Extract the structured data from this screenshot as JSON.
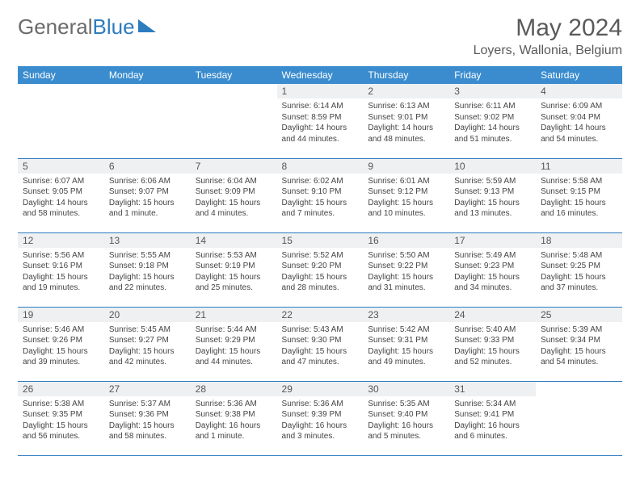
{
  "brand": {
    "name1": "General",
    "name2": "Blue"
  },
  "title": {
    "month": "May 2024",
    "location": "Loyers, Wallonia, Belgium"
  },
  "colors": {
    "header_bg": "#3a8cce",
    "rule": "#2d7cc0",
    "daynum_bg": "#eef0f2"
  },
  "weekdays": [
    "Sunday",
    "Monday",
    "Tuesday",
    "Wednesday",
    "Thursday",
    "Friday",
    "Saturday"
  ],
  "weeks": [
    [
      {
        "n": "",
        "r": "",
        "s": "",
        "d": ""
      },
      {
        "n": "",
        "r": "",
        "s": "",
        "d": ""
      },
      {
        "n": "",
        "r": "",
        "s": "",
        "d": ""
      },
      {
        "n": "1",
        "r": "Sunrise: 6:14 AM",
        "s": "Sunset: 8:59 PM",
        "d": "Daylight: 14 hours and 44 minutes."
      },
      {
        "n": "2",
        "r": "Sunrise: 6:13 AM",
        "s": "Sunset: 9:01 PM",
        "d": "Daylight: 14 hours and 48 minutes."
      },
      {
        "n": "3",
        "r": "Sunrise: 6:11 AM",
        "s": "Sunset: 9:02 PM",
        "d": "Daylight: 14 hours and 51 minutes."
      },
      {
        "n": "4",
        "r": "Sunrise: 6:09 AM",
        "s": "Sunset: 9:04 PM",
        "d": "Daylight: 14 hours and 54 minutes."
      }
    ],
    [
      {
        "n": "5",
        "r": "Sunrise: 6:07 AM",
        "s": "Sunset: 9:05 PM",
        "d": "Daylight: 14 hours and 58 minutes."
      },
      {
        "n": "6",
        "r": "Sunrise: 6:06 AM",
        "s": "Sunset: 9:07 PM",
        "d": "Daylight: 15 hours and 1 minute."
      },
      {
        "n": "7",
        "r": "Sunrise: 6:04 AM",
        "s": "Sunset: 9:09 PM",
        "d": "Daylight: 15 hours and 4 minutes."
      },
      {
        "n": "8",
        "r": "Sunrise: 6:02 AM",
        "s": "Sunset: 9:10 PM",
        "d": "Daylight: 15 hours and 7 minutes."
      },
      {
        "n": "9",
        "r": "Sunrise: 6:01 AM",
        "s": "Sunset: 9:12 PM",
        "d": "Daylight: 15 hours and 10 minutes."
      },
      {
        "n": "10",
        "r": "Sunrise: 5:59 AM",
        "s": "Sunset: 9:13 PM",
        "d": "Daylight: 15 hours and 13 minutes."
      },
      {
        "n": "11",
        "r": "Sunrise: 5:58 AM",
        "s": "Sunset: 9:15 PM",
        "d": "Daylight: 15 hours and 16 minutes."
      }
    ],
    [
      {
        "n": "12",
        "r": "Sunrise: 5:56 AM",
        "s": "Sunset: 9:16 PM",
        "d": "Daylight: 15 hours and 19 minutes."
      },
      {
        "n": "13",
        "r": "Sunrise: 5:55 AM",
        "s": "Sunset: 9:18 PM",
        "d": "Daylight: 15 hours and 22 minutes."
      },
      {
        "n": "14",
        "r": "Sunrise: 5:53 AM",
        "s": "Sunset: 9:19 PM",
        "d": "Daylight: 15 hours and 25 minutes."
      },
      {
        "n": "15",
        "r": "Sunrise: 5:52 AM",
        "s": "Sunset: 9:20 PM",
        "d": "Daylight: 15 hours and 28 minutes."
      },
      {
        "n": "16",
        "r": "Sunrise: 5:50 AM",
        "s": "Sunset: 9:22 PM",
        "d": "Daylight: 15 hours and 31 minutes."
      },
      {
        "n": "17",
        "r": "Sunrise: 5:49 AM",
        "s": "Sunset: 9:23 PM",
        "d": "Daylight: 15 hours and 34 minutes."
      },
      {
        "n": "18",
        "r": "Sunrise: 5:48 AM",
        "s": "Sunset: 9:25 PM",
        "d": "Daylight: 15 hours and 37 minutes."
      }
    ],
    [
      {
        "n": "19",
        "r": "Sunrise: 5:46 AM",
        "s": "Sunset: 9:26 PM",
        "d": "Daylight: 15 hours and 39 minutes."
      },
      {
        "n": "20",
        "r": "Sunrise: 5:45 AM",
        "s": "Sunset: 9:27 PM",
        "d": "Daylight: 15 hours and 42 minutes."
      },
      {
        "n": "21",
        "r": "Sunrise: 5:44 AM",
        "s": "Sunset: 9:29 PM",
        "d": "Daylight: 15 hours and 44 minutes."
      },
      {
        "n": "22",
        "r": "Sunrise: 5:43 AM",
        "s": "Sunset: 9:30 PM",
        "d": "Daylight: 15 hours and 47 minutes."
      },
      {
        "n": "23",
        "r": "Sunrise: 5:42 AM",
        "s": "Sunset: 9:31 PM",
        "d": "Daylight: 15 hours and 49 minutes."
      },
      {
        "n": "24",
        "r": "Sunrise: 5:40 AM",
        "s": "Sunset: 9:33 PM",
        "d": "Daylight: 15 hours and 52 minutes."
      },
      {
        "n": "25",
        "r": "Sunrise: 5:39 AM",
        "s": "Sunset: 9:34 PM",
        "d": "Daylight: 15 hours and 54 minutes."
      }
    ],
    [
      {
        "n": "26",
        "r": "Sunrise: 5:38 AM",
        "s": "Sunset: 9:35 PM",
        "d": "Daylight: 15 hours and 56 minutes."
      },
      {
        "n": "27",
        "r": "Sunrise: 5:37 AM",
        "s": "Sunset: 9:36 PM",
        "d": "Daylight: 15 hours and 58 minutes."
      },
      {
        "n": "28",
        "r": "Sunrise: 5:36 AM",
        "s": "Sunset: 9:38 PM",
        "d": "Daylight: 16 hours and 1 minute."
      },
      {
        "n": "29",
        "r": "Sunrise: 5:36 AM",
        "s": "Sunset: 9:39 PM",
        "d": "Daylight: 16 hours and 3 minutes."
      },
      {
        "n": "30",
        "r": "Sunrise: 5:35 AM",
        "s": "Sunset: 9:40 PM",
        "d": "Daylight: 16 hours and 5 minutes."
      },
      {
        "n": "31",
        "r": "Sunrise: 5:34 AM",
        "s": "Sunset: 9:41 PM",
        "d": "Daylight: 16 hours and 6 minutes."
      },
      {
        "n": "",
        "r": "",
        "s": "",
        "d": ""
      }
    ]
  ]
}
